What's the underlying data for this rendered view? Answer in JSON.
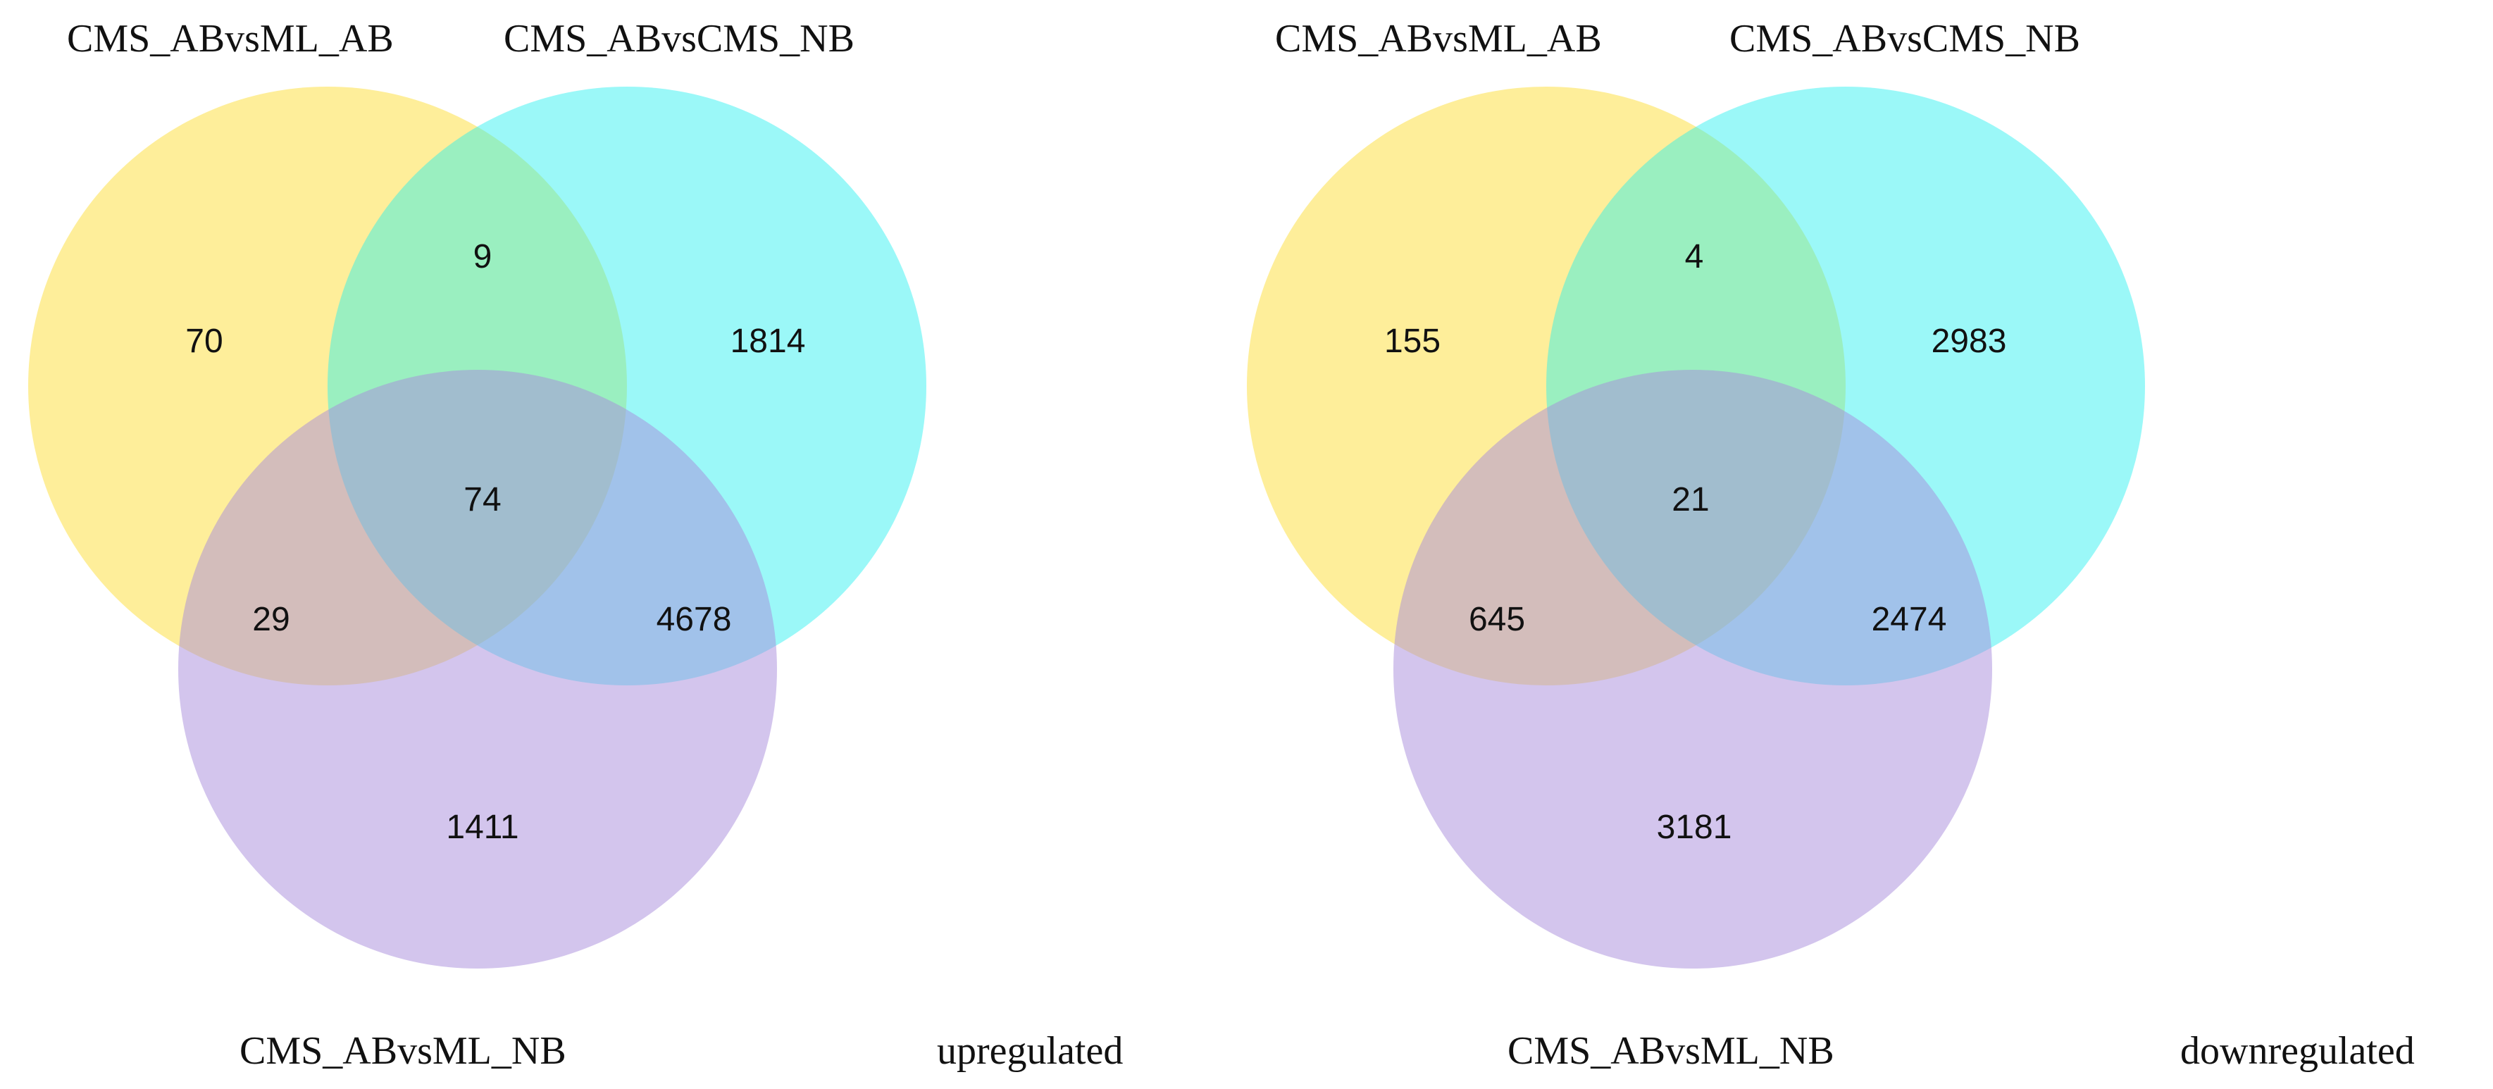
{
  "colors": {
    "set_a": "#fde047",
    "set_b": "#22f0f0",
    "set_c": "#a78bdb"
  },
  "panels": [
    {
      "caption": "upregulated",
      "labels": {
        "a": "CMS_ABvsML_AB",
        "b": "CMS_ABvsCMS_NB",
        "c": "CMS_ABvsML_NB"
      },
      "counts": {
        "a_only": "70",
        "b_only": "1814",
        "c_only": "1411",
        "ab": "9",
        "ac": "29",
        "bc": "4678",
        "abc": "74"
      }
    },
    {
      "caption": "downregulated",
      "labels": {
        "a": "CMS_ABvsML_AB",
        "b": "CMS_ABvsCMS_NB",
        "c": "CMS_ABvsML_NB"
      },
      "counts": {
        "a_only": "155",
        "b_only": "2983",
        "c_only": "3181",
        "ab": "4",
        "ac": "645",
        "bc": "2474",
        "abc": "21"
      }
    }
  ]
}
